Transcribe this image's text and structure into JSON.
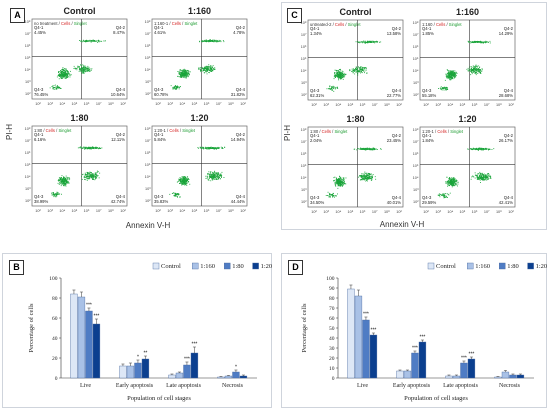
{
  "panels": {
    "A": "A",
    "B": "B",
    "C": "C",
    "D": "D"
  },
  "flow_axis": {
    "ylabel": "PI-H",
    "xlabel": "Annexin V-H"
  },
  "flow_ticks": [
    "10²",
    "10³",
    "10⁴",
    "10⁵",
    "10⁶",
    "10⁷",
    "10⁸",
    "10²"
  ],
  "gate_suffix": {
    "cells": "Cells",
    "singlet": "Singlet"
  },
  "colors": {
    "dot": "#1aa53a",
    "gate_red": "#d42020",
    "gate_green": "#1a9a2e",
    "control": "#dde7f6",
    "r160": "#a9c1e6",
    "r80": "#4f7cc4",
    "r20": "#0b3f8f"
  },
  "chart_data": [
    {
      "type": "scatter",
      "id": "A",
      "plots": [
        {
          "title": "Control",
          "gate_label": "no treatment",
          "q1": "Q4-1\n4.45%",
          "q2": "Q4-2\n8.47%",
          "q3": "Q4-3\n76.45%",
          "q4": "Q4-4\n10.64%"
        },
        {
          "title": "1:160",
          "gate_label": "1:160-1",
          "q1": "Q4-1\n4.61%",
          "q2": "Q4-2\n4.78%",
          "q3": "Q4-3\n60.78%",
          "q4": "Q4-4\n31.82%"
        },
        {
          "title": "1:80",
          "gate_label": "1:80",
          "q1": "Q4-1\n6.16%",
          "q2": "Q4-2\n12.11%",
          "q3": "Q4-3\n38.99%",
          "q4": "Q4-4\n42.74%"
        },
        {
          "title": "1:20",
          "gate_label": "1:20-1",
          "q1": "Q4-1\n5.84%",
          "q2": "Q4-2\n14.94%",
          "q3": "Q4-3\n35.83%",
          "q4": "Q4-4\n44.44%"
        }
      ]
    },
    {
      "type": "scatter",
      "id": "C",
      "plots": [
        {
          "title": "Control",
          "gate_label": "untreated-2",
          "q1": "Q4-1\n1.34%",
          "q2": "Q4-2\n13.58%",
          "q3": "Q4-3\n62.31%",
          "q4": "Q4-4\n22.77%"
        },
        {
          "title": "1:160",
          "gate_label": "1:160",
          "q1": "Q4-1\n1.85%",
          "q2": "Q4-2\n14.29%",
          "q3": "Q4-3\n55.18%",
          "q4": "Q4-4\n28.68%"
        },
        {
          "title": "1:80",
          "gate_label": "1:80",
          "q1": "Q4-1\n2.04%",
          "q2": "Q4-2\n23.45%",
          "q3": "Q4-3\n34.50%",
          "q4": "Q4-4\n40.01%"
        },
        {
          "title": "1:20",
          "gate_label": "1:20-1",
          "q1": "Q4-1\n1.84%",
          "q2": "Q4-2\n26.17%",
          "q3": "Q4-3\n29.59%",
          "q4": "Q4-4\n42.41%"
        }
      ]
    },
    {
      "type": "bar",
      "id": "B",
      "categories": [
        "Live",
        "Early apoptosis",
        "Late apoptosis",
        "Necrosis"
      ],
      "ylabel": "Percentage of cells",
      "xlabel": "Population of cell stages",
      "ylim": [
        0,
        100
      ],
      "yticks": [
        "0",
        "20",
        "40",
        "60",
        "80",
        "100"
      ],
      "legend_position": "top-right",
      "series": [
        {
          "name": "Control",
          "values": [
            84,
            12,
            3,
            1
          ],
          "errors": [
            4,
            2,
            1,
            0.5
          ],
          "stars": [
            "",
            "",
            "",
            ""
          ]
        },
        {
          "name": "1:160",
          "values": [
            81,
            12,
            5,
            2
          ],
          "errors": [
            5,
            3,
            1,
            0.5
          ],
          "stars": [
            "",
            "",
            "",
            ""
          ]
        },
        {
          "name": "1:80",
          "values": [
            67,
            15,
            13,
            6
          ],
          "errors": [
            3,
            3,
            3,
            2
          ],
          "stars": [
            "***",
            "*",
            "***",
            "*"
          ]
        },
        {
          "name": "1:20",
          "values": [
            54,
            19,
            25,
            2
          ],
          "errors": [
            5,
            3,
            6,
            1
          ],
          "stars": [
            "***",
            "**",
            "***",
            ""
          ]
        }
      ]
    },
    {
      "type": "bar",
      "id": "D",
      "categories": [
        "Live",
        "Early apoptosis",
        "Late apoptosis",
        "Necrosis"
      ],
      "ylabel": "Percentage of cells",
      "xlabel": "Population of cell stages",
      "ylim": [
        0,
        100
      ],
      "yticks": [
        "0",
        "10",
        "20",
        "30",
        "40",
        "50",
        "60",
        "70",
        "80",
        "90",
        "100"
      ],
      "legend_position": "top-right",
      "series": [
        {
          "name": "Control",
          "values": [
            89,
            7,
            2,
            1
          ],
          "errors": [
            4,
            1,
            1,
            0.5
          ],
          "stars": [
            "",
            "",
            "",
            ""
          ]
        },
        {
          "name": "1:160",
          "values": [
            82,
            7,
            2,
            6
          ],
          "errors": [
            6,
            1,
            1,
            1.5
          ],
          "stars": [
            "",
            "",
            "",
            ""
          ]
        },
        {
          "name": "1:80",
          "values": [
            58,
            25,
            15,
            3
          ],
          "errors": [
            3,
            2,
            2,
            1
          ],
          "stars": [
            "***",
            "***",
            "***",
            ""
          ]
        },
        {
          "name": "1:20",
          "values": [
            43,
            36,
            19,
            3
          ],
          "errors": [
            2,
            2,
            2,
            1
          ],
          "stars": [
            "***",
            "***",
            "***",
            ""
          ]
        }
      ]
    }
  ]
}
